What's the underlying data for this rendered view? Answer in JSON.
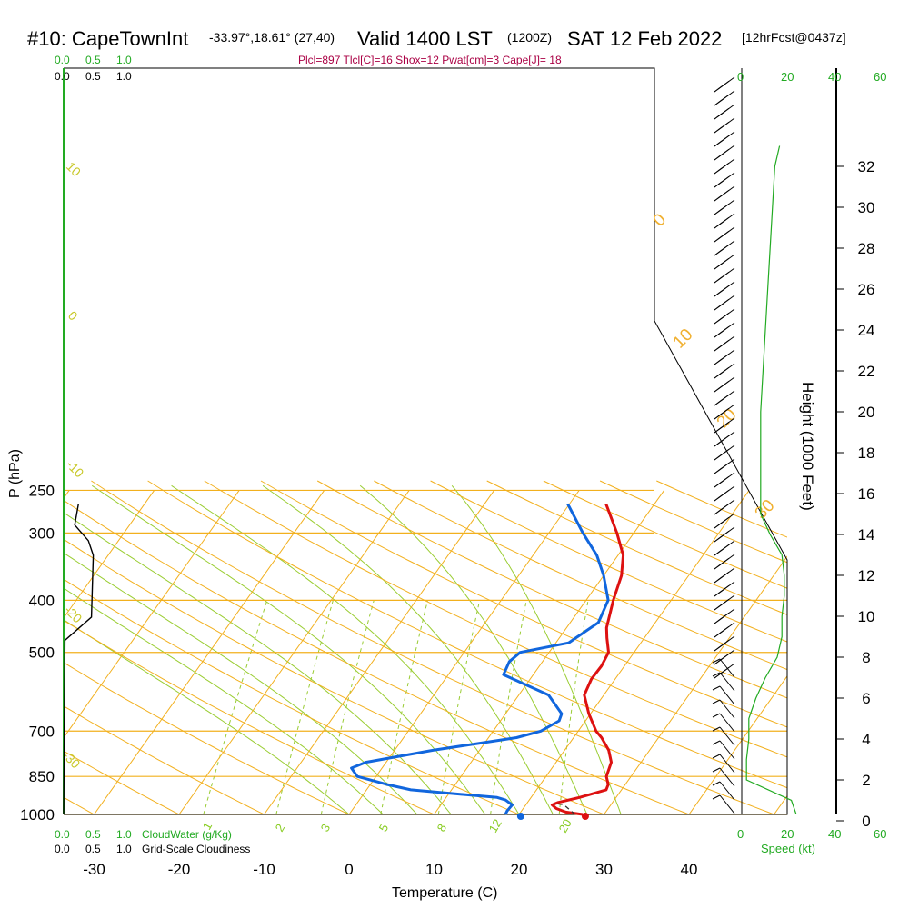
{
  "header": {
    "station": "#10: CapeTownInt",
    "coords": "-33.97°,18.61° (27,40)",
    "valid": "Valid 1400 LST",
    "utc": "(1200Z)",
    "date": "SAT 12 Feb 2022",
    "forecast": "[12hrFcst@0437z]",
    "stats_line": "Plcl=897 Tlcl[C]=16 Shox=12 Pwat[cm]=3 Cape[J]= 18"
  },
  "axes": {
    "xlabel": "Temperature (C)",
    "ylabel": "P (hPa)",
    "height_label": "Height (1000 Feet)",
    "speed_label": "Speed (kt)",
    "cloudwater_label": "CloudWater (g/Kg)",
    "cloudiness_label": "Grid-Scale Cloudiness",
    "cloud_scale_green": [
      "0.0",
      "0.5",
      "1.0"
    ],
    "cloud_scale_black": [
      "0.0",
      "0.5",
      "1.0"
    ],
    "speed_ticks": [
      "0",
      "20",
      "40",
      "60"
    ]
  },
  "chart_data": {
    "type": "line",
    "diagram": "skew-t log-p sounding",
    "y_scale": "log",
    "ylim": [
      1000,
      250
    ],
    "xlim": [
      -33,
      45
    ],
    "x_ticks": [
      -30,
      -20,
      -10,
      0,
      10,
      20,
      30,
      40
    ],
    "pressure_ticks": [
      250,
      300,
      400,
      500,
      700,
      850,
      1000
    ],
    "height_ticks_kft": [
      0,
      2,
      4,
      6,
      8,
      10,
      12,
      14,
      16,
      18,
      20,
      22,
      24,
      26,
      28,
      30,
      32
    ],
    "isotherm_labels": [
      30,
      20,
      10,
      0
    ],
    "dry_adiabat_labels": [
      10,
      0,
      -10,
      -20,
      -30
    ],
    "mixing_ratio_labels": [
      "1",
      "2",
      "3",
      "5",
      "8",
      "12",
      "20"
    ],
    "surface_temperature_c": 27.8,
    "surface_dewpoint_c": 20.2,
    "series": [
      {
        "name": "Temperature",
        "color": "#dd1111",
        "points": [
          [
            1000,
            27.5
          ],
          [
            990,
            25.3
          ],
          [
            975,
            23.9
          ],
          [
            960,
            23.1
          ],
          [
            950,
            23.6
          ],
          [
            930,
            25.7
          ],
          [
            900,
            28.2
          ],
          [
            880,
            28.0
          ],
          [
            850,
            27.1
          ],
          [
            800,
            26.5
          ],
          [
            760,
            25.2
          ],
          [
            720,
            23.3
          ],
          [
            700,
            22.1
          ],
          [
            650,
            19.8
          ],
          [
            600,
            17.7
          ],
          [
            560,
            17.2
          ],
          [
            530,
            17.3
          ],
          [
            500,
            17.0
          ],
          [
            470,
            15.6
          ],
          [
            450,
            14.7
          ],
          [
            400,
            13.2
          ],
          [
            360,
            12.1
          ],
          [
            330,
            10.6
          ],
          [
            300,
            8.0
          ],
          [
            265,
            4.3
          ]
        ]
      },
      {
        "name": "Dewpoint",
        "color": "#1166dd",
        "points": [
          [
            1000,
            18.4
          ],
          [
            985,
            18.3
          ],
          [
            960,
            18.4
          ],
          [
            940,
            17.2
          ],
          [
            930,
            16.0
          ],
          [
            900,
            5.2
          ],
          [
            880,
            2.0
          ],
          [
            850,
            -2.2
          ],
          [
            820,
            -3.6
          ],
          [
            800,
            -2.4
          ],
          [
            760,
            4.5
          ],
          [
            720,
            13.3
          ],
          [
            700,
            15.6
          ],
          [
            670,
            16.9
          ],
          [
            650,
            16.6
          ],
          [
            600,
            13.5
          ],
          [
            550,
            6.5
          ],
          [
            520,
            6.1
          ],
          [
            500,
            6.6
          ],
          [
            480,
            11.5
          ],
          [
            440,
            13.3
          ],
          [
            400,
            12.6
          ],
          [
            360,
            10.0
          ],
          [
            330,
            7.5
          ],
          [
            300,
            4.0
          ],
          [
            265,
            -0.2
          ]
        ]
      },
      {
        "name": "Parcel",
        "color": "#333333",
        "points": [
          [
            1000,
            26.6
          ],
          [
            960,
            24.5
          ],
          [
            955,
            23.6
          ]
        ]
      },
      {
        "name": "Cloudiness",
        "color": "#000000",
        "points": [
          [
            1000,
            0
          ],
          [
            475,
            0.02
          ],
          [
            430,
            0.45
          ],
          [
            330,
            0.48
          ],
          [
            310,
            0.4
          ],
          [
            290,
            0.18
          ],
          [
            265,
            0.24
          ]
        ]
      }
    ],
    "wind_speed_profile_kt": [
      [
        0,
        24
      ],
      [
        1,
        21
      ],
      [
        2,
        2
      ],
      [
        3,
        2
      ],
      [
        4,
        3
      ],
      [
        5,
        3
      ],
      [
        6,
        6
      ],
      [
        7,
        10
      ],
      [
        8,
        15
      ],
      [
        9,
        17
      ],
      [
        10,
        17
      ],
      [
        11,
        18
      ],
      [
        12,
        18
      ],
      [
        13,
        17
      ],
      [
        14,
        12
      ],
      [
        15,
        8
      ],
      [
        16,
        8
      ],
      [
        18,
        8
      ],
      [
        20,
        8
      ],
      [
        22,
        9
      ],
      [
        24,
        10
      ],
      [
        26,
        11
      ],
      [
        28,
        12
      ],
      [
        30,
        13
      ],
      [
        32,
        14
      ],
      [
        33,
        16
      ]
    ]
  }
}
